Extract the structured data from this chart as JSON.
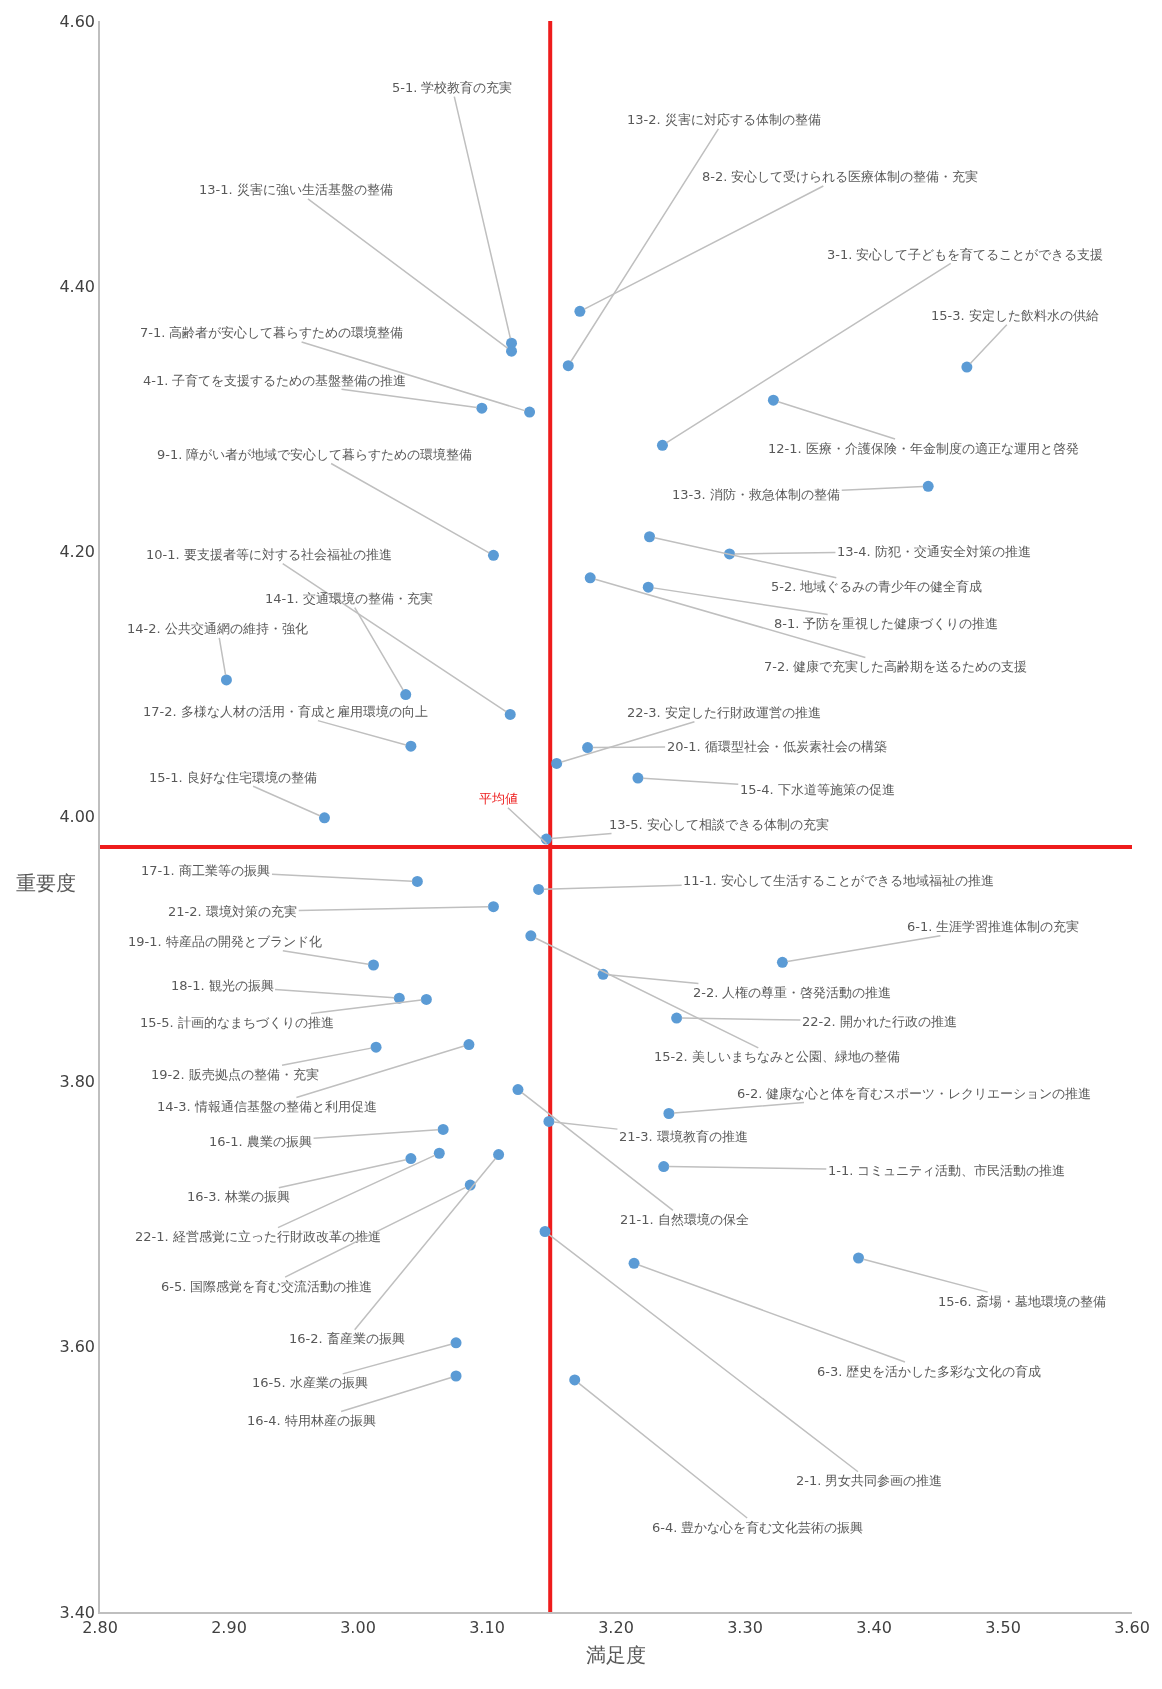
{
  "chart_data": {
    "type": "scatter",
    "xlabel": "満足度",
    "ylabel": "重要度",
    "color": "#5b9bd5",
    "marker": "circle",
    "grid": false,
    "xlim": [
      2.8,
      3.6
    ],
    "xticks": [
      {
        "value": 2.8,
        "label": "2.80"
      },
      {
        "value": 2.9,
        "label": "2.90"
      },
      {
        "value": 3.0,
        "label": "3.00"
      },
      {
        "value": 3.1,
        "label": "3.10"
      },
      {
        "value": 3.2,
        "label": "3.20"
      },
      {
        "value": 3.3,
        "label": "3.30"
      },
      {
        "value": 3.4,
        "label": "3.40"
      },
      {
        "value": 3.5,
        "label": "3.50"
      },
      {
        "value": 3.6,
        "label": "3.60"
      }
    ],
    "ylim": [
      3.4,
      4.6
    ],
    "yticks": [
      {
        "value": 3.4,
        "label": "3.40"
      },
      {
        "value": 3.6,
        "label": "3.60"
      },
      {
        "value": 3.8,
        "label": "3.80"
      },
      {
        "value": 4.0,
        "label": "4.00"
      },
      {
        "value": 4.2,
        "label": "4.20"
      },
      {
        "value": 4.4,
        "label": "4.40"
      },
      {
        "value": 4.6,
        "label": "4.60"
      }
    ],
    "x": [
      3.119,
      3.119,
      3.163,
      3.172,
      3.236,
      3.472,
      3.322,
      3.133,
      3.096,
      3.105,
      3.442,
      3.288,
      3.226,
      3.225,
      3.18,
      3.118,
      3.037,
      2.898,
      3.041,
      3.154,
      3.178,
      3.217,
      2.974,
      3.146,
      3.046,
      3.14,
      3.105,
      3.134,
      3.012,
      3.329,
      3.19,
      3.032,
      3.053,
      3.247,
      3.014,
      3.086,
      3.241,
      3.148,
      3.066,
      3.124,
      3.237,
      3.041,
      3.063,
      3.087,
      3.109,
      3.076,
      3.076,
      3.145,
      3.214,
      3.388,
      3.168
    ],
    "values": [
      4.357,
      4.351,
      4.34,
      4.381,
      4.28,
      4.339,
      4.314,
      4.305,
      4.308,
      4.197,
      4.249,
      4.198,
      4.211,
      4.173,
      4.18,
      4.077,
      4.092,
      4.103,
      4.053,
      4.04,
      4.052,
      4.029,
      3.999,
      3.983,
      3.951,
      3.945,
      3.932,
      3.91,
      3.888,
      3.89,
      3.881,
      3.863,
      3.862,
      3.848,
      3.826,
      3.828,
      3.776,
      3.77,
      3.764,
      3.794,
      3.736,
      3.742,
      3.746,
      3.722,
      3.745,
      3.603,
      3.578,
      3.687,
      3.663,
      3.667,
      3.575
    ],
    "ref_lines": [
      {
        "axis": "x",
        "value": 3.149,
        "color": "#ee1c1c"
      },
      {
        "axis": "y",
        "value": 3.977,
        "color": "#ee1c1c"
      }
    ],
    "annotations": [
      {
        "text": "5-1. 学校教育の充実",
        "x": 3.119,
        "y": 4.357
      },
      {
        "text": "13-1. 災害に強い生活基盤の整備",
        "x": 3.119,
        "y": 4.351
      },
      {
        "text": "13-2. 災害に対応する体制の整備",
        "x": 3.163,
        "y": 4.34
      },
      {
        "text": "8-2. 安心して受けられる医療体制の整備・充実",
        "x": 3.172,
        "y": 4.381
      },
      {
        "text": "3-1. 安心して子どもを育てることができる支援",
        "x": 3.236,
        "y": 4.28
      },
      {
        "text": "15-3. 安定した飲料水の供給",
        "x": 3.472,
        "y": 4.339
      },
      {
        "text": "12-1. 医療・介護保険・年金制度の適正な運用と啓発",
        "x": 3.322,
        "y": 4.314
      },
      {
        "text": "7-1. 高齢者が安心して暮らすための環境整備",
        "x": 3.133,
        "y": 4.305
      },
      {
        "text": "4-1. 子育てを支援するための基盤整備の推進",
        "x": 3.096,
        "y": 4.308
      },
      {
        "text": "9-1. 障がい者が地域で安心して暮らすための環境整備",
        "x": 3.105,
        "y": 4.197
      },
      {
        "text": "13-3. 消防・救急体制の整備",
        "x": 3.442,
        "y": 4.249
      },
      {
        "text": "13-4. 防犯・交通安全対策の推進",
        "x": 3.288,
        "y": 4.198
      },
      {
        "text": "5-2. 地域ぐるみの青少年の健全育成",
        "x": 3.226,
        "y": 4.211
      },
      {
        "text": "8-1. 予防を重視した健康づくりの推進",
        "x": 3.225,
        "y": 4.173
      },
      {
        "text": "7-2. 健康で充実した高齢期を送るための支援",
        "x": 3.18,
        "y": 4.18
      },
      {
        "text": "10-1. 要支援者等に対する社会福祉の推進",
        "x": 3.118,
        "y": 4.077
      },
      {
        "text": "14-1. 交通環境の整備・充実",
        "x": 3.037,
        "y": 4.092
      },
      {
        "text": "14-2. 公共交通網の維持・強化",
        "x": 2.898,
        "y": 4.103
      },
      {
        "text": "17-2. 多様な人材の活用・育成と雇用環境の向上",
        "x": 3.041,
        "y": 4.053
      },
      {
        "text": "22-3. 安定した行財政運営の推進",
        "x": 3.154,
        "y": 4.04
      },
      {
        "text": "20-1. 循環型社会・低炭素社会の構築",
        "x": 3.178,
        "y": 4.052
      },
      {
        "text": "15-4. 下水道等施策の促進",
        "x": 3.217,
        "y": 4.029
      },
      {
        "text": "15-1. 良好な住宅環境の整備",
        "x": 2.974,
        "y": 3.999
      },
      {
        "text": "13-5. 安心して相談できる体制の充実",
        "x": 3.146,
        "y": 3.983
      },
      {
        "text": "17-1. 商工業等の振興",
        "x": 3.046,
        "y": 3.951
      },
      {
        "text": "11-1. 安心して生活することができる地域福祉の推進",
        "x": 3.14,
        "y": 3.945
      },
      {
        "text": "21-2. 環境対策の充実",
        "x": 3.105,
        "y": 3.932
      },
      {
        "text": "15-2. 美しいまちなみと公園、緑地の整備",
        "x": 3.134,
        "y": 3.91
      },
      {
        "text": "19-1. 特産品の開発とブランド化",
        "x": 3.012,
        "y": 3.888
      },
      {
        "text": "6-1. 生涯学習推進体制の充実",
        "x": 3.329,
        "y": 3.89
      },
      {
        "text": "2-2. 人権の尊重・啓発活動の推進",
        "x": 3.19,
        "y": 3.881
      },
      {
        "text": "18-1. 観光の振興",
        "x": 3.032,
        "y": 3.863
      },
      {
        "text": "15-5. 計画的なまちづくりの推進",
        "x": 3.053,
        "y": 3.862
      },
      {
        "text": "22-2. 開かれた行政の推進",
        "x": 3.247,
        "y": 3.848
      },
      {
        "text": "19-2. 販売拠点の整備・充実",
        "x": 3.014,
        "y": 3.826
      },
      {
        "text": "14-3. 情報通信基盤の整備と利用促進",
        "x": 3.086,
        "y": 3.828
      },
      {
        "text": "6-2. 健康な心と体を育むスポーツ・レクリエーションの推進",
        "x": 3.241,
        "y": 3.776
      },
      {
        "text": "21-3. 環境教育の推進",
        "x": 3.148,
        "y": 3.77
      },
      {
        "text": "16-1. 農業の振興",
        "x": 3.066,
        "y": 3.764
      },
      {
        "text": "21-1. 自然環境の保全",
        "x": 3.124,
        "y": 3.794
      },
      {
        "text": "1-1. コミュニティ活動、市民活動の推進",
        "x": 3.237,
        "y": 3.736
      },
      {
        "text": "16-3. 林業の振興",
        "x": 3.041,
        "y": 3.742
      },
      {
        "text": "22-1. 経営感覚に立った行財政改革の推進",
        "x": 3.063,
        "y": 3.746
      },
      {
        "text": "6-5. 国際感覚を育む交流活動の推進",
        "x": 3.087,
        "y": 3.722
      },
      {
        "text": "16-2. 畜産業の振興",
        "x": 3.109,
        "y": 3.745
      },
      {
        "text": "16-5. 水産業の振興",
        "x": 3.076,
        "y": 3.603
      },
      {
        "text": "16-4. 特用林産の振興",
        "x": 3.076,
        "y": 3.578
      },
      {
        "text": "2-1. 男女共同参画の推進",
        "x": 3.145,
        "y": 3.687
      },
      {
        "text": "6-3. 歴史を活かした多彩な文化の育成",
        "x": 3.214,
        "y": 3.663
      },
      {
        "text": "15-6. 斎場・墓地環境の整備",
        "x": 3.388,
        "y": 3.667
      },
      {
        "text": "6-4. 豊かな心を育む文化芸術の振興",
        "x": 3.168,
        "y": 3.575
      },
      {
        "text": "平均値",
        "x": 3.149,
        "y": 3.977
      }
    ]
  }
}
